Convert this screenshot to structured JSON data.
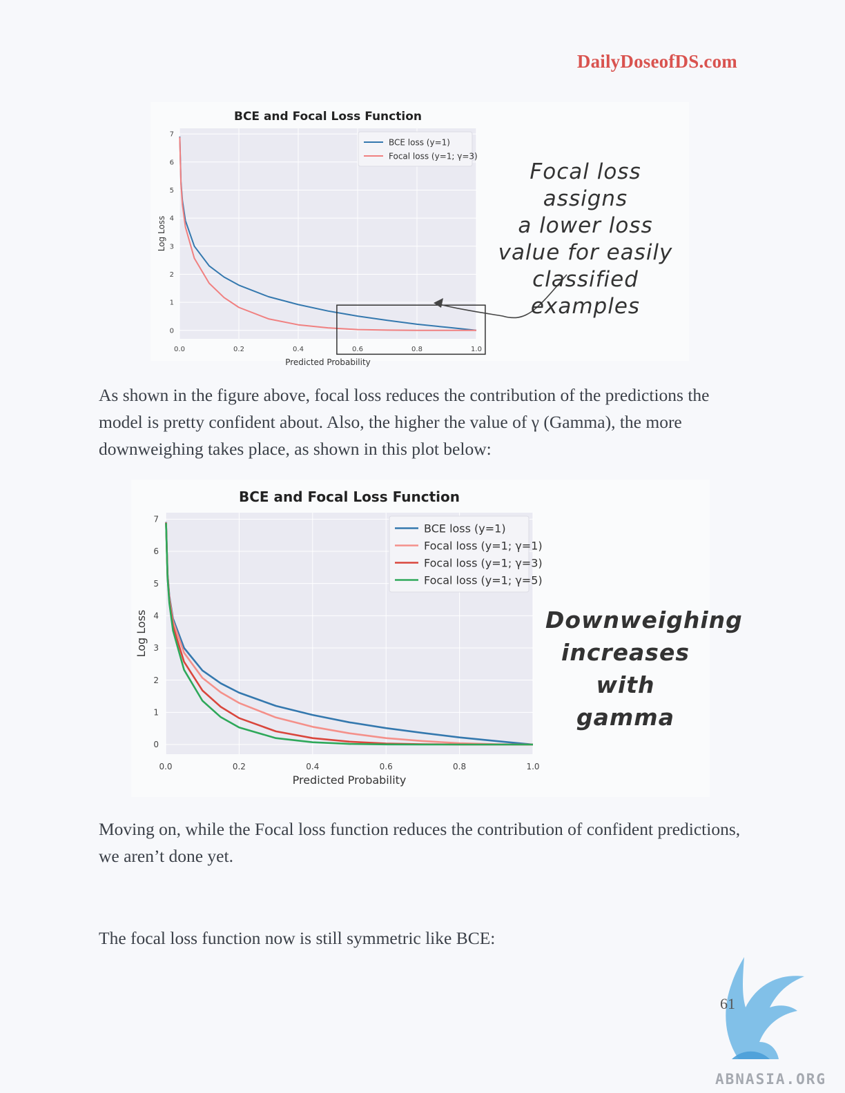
{
  "header": {
    "brand": "DailyDoseofDS.com"
  },
  "figure1": {
    "annotation": [
      "Focal loss assigns",
      "a lower loss",
      "value for easily",
      "classified examples"
    ]
  },
  "figure2": {
    "annotation": [
      "Downweighing",
      "increases",
      "with gamma"
    ]
  },
  "paragraphs": {
    "p1": "As shown in the figure above, focal loss reduces the contribution of the predictions the model is pretty confident about. Also, the higher the value of γ (Gamma), the more downweighing takes place, as shown in this plot below:",
    "p2": "Moving on, while the Focal loss function reduces the contribution of confident predictions, we aren’t done yet.",
    "p3": "The focal loss function now is still symmetric like BCE:"
  },
  "footer": {
    "page_number": "61",
    "watermark": "ABNASIA.ORG"
  },
  "chart_data": [
    {
      "type": "line",
      "title": "BCE and Focal Loss Function",
      "xlabel": "Predicted Probability",
      "ylabel": "Log Loss",
      "xlim": [
        0,
        1
      ],
      "ylim": [
        -0.3,
        7.2
      ],
      "xticks": [
        "0.0",
        "0.2",
        "0.4",
        "0.6",
        "0.8",
        "1.0"
      ],
      "yticks": [
        "0",
        "1",
        "2",
        "3",
        "4",
        "5",
        "6",
        "7"
      ],
      "grid": true,
      "legend": "top-right",
      "highlight_box": {
        "x": [
          0.53,
          1.03
        ],
        "y": [
          -0.85,
          0.9
        ]
      },
      "x": [
        0.001,
        0.005,
        0.01,
        0.02,
        0.05,
        0.1,
        0.15,
        0.2,
        0.3,
        0.4,
        0.5,
        0.6,
        0.7,
        0.8,
        0.9,
        1.0
      ],
      "series": [
        {
          "name": "BCE loss (y=1)",
          "color": "#3478ae",
          "values": [
            6.91,
            5.3,
            4.61,
            3.91,
            3.0,
            2.3,
            1.9,
            1.61,
            1.2,
            0.92,
            0.69,
            0.51,
            0.36,
            0.22,
            0.11,
            0.0
          ]
        },
        {
          "name": "Focal loss (y=1; γ=3)",
          "color": "#f08080",
          "values": [
            6.89,
            5.22,
            4.47,
            3.68,
            2.57,
            1.68,
            1.17,
            0.82,
            0.41,
            0.2,
            0.09,
            0.03,
            0.01,
            0.002,
            0.0,
            0.0
          ]
        }
      ]
    },
    {
      "type": "line",
      "title": "BCE and Focal Loss Function",
      "xlabel": "Predicted Probability",
      "ylabel": "Log Loss",
      "xlim": [
        0,
        1
      ],
      "ylim": [
        -0.3,
        7.2
      ],
      "xticks": [
        "0.0",
        "0.2",
        "0.4",
        "0.6",
        "0.8",
        "1.0"
      ],
      "yticks": [
        "0",
        "1",
        "2",
        "3",
        "4",
        "5",
        "6",
        "7"
      ],
      "grid": true,
      "legend": "top-right",
      "x": [
        0.001,
        0.005,
        0.01,
        0.02,
        0.05,
        0.1,
        0.15,
        0.2,
        0.3,
        0.4,
        0.5,
        0.6,
        0.7,
        0.8,
        0.9,
        1.0
      ],
      "series": [
        {
          "name": "BCE loss (y=1)",
          "color": "#3478ae",
          "values": [
            6.91,
            5.3,
            4.61,
            3.91,
            3.0,
            2.3,
            1.9,
            1.61,
            1.2,
            0.92,
            0.69,
            0.51,
            0.36,
            0.22,
            0.11,
            0.0
          ]
        },
        {
          "name": "Focal loss (y=1; γ=1)",
          "color": "#f4908a",
          "values": [
            6.9,
            5.27,
            4.56,
            3.83,
            2.85,
            2.07,
            1.62,
            1.29,
            0.84,
            0.55,
            0.35,
            0.2,
            0.11,
            0.04,
            0.01,
            0.0
          ]
        },
        {
          "name": "Focal loss (y=1; γ=3)",
          "color": "#d9463c",
          "values": [
            6.89,
            5.22,
            4.47,
            3.68,
            2.57,
            1.68,
            1.17,
            0.82,
            0.41,
            0.2,
            0.09,
            0.03,
            0.01,
            0.002,
            0.0,
            0.0
          ]
        },
        {
          "name": "Focal loss (y=1; γ=5)",
          "color": "#2ea85a",
          "values": [
            6.88,
            5.17,
            4.39,
            3.54,
            2.32,
            1.36,
            0.85,
            0.53,
            0.2,
            0.07,
            0.02,
            0.005,
            0.0,
            0.0,
            0.0,
            0.0
          ]
        }
      ]
    }
  ]
}
